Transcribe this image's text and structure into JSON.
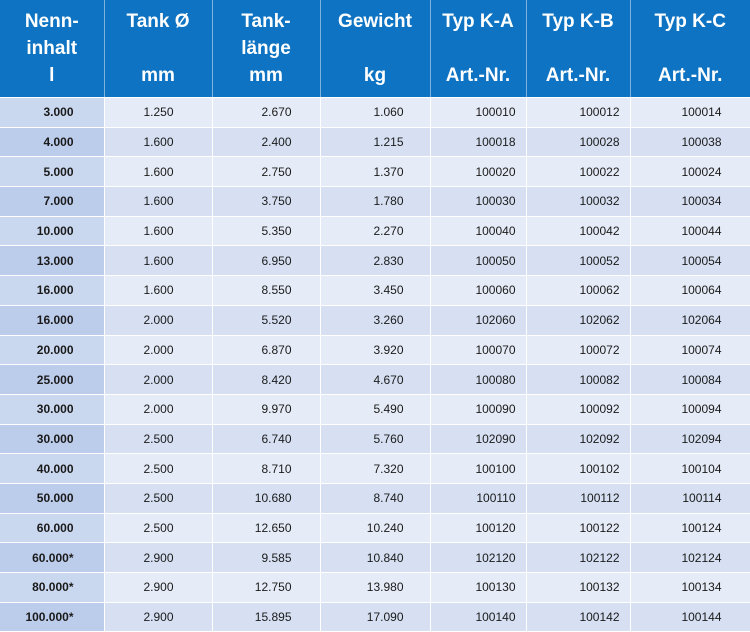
{
  "header": [
    [
      "Nenn-",
      "inhalt",
      "l"
    ],
    [
      "Tank Ø",
      "",
      "mm"
    ],
    [
      "Tank-",
      "länge",
      "mm"
    ],
    [
      "Gewicht",
      "",
      "kg"
    ],
    [
      "Typ K-A",
      "",
      "Art.-Nr."
    ],
    [
      "Typ K-B",
      "",
      "Art.-Nr."
    ],
    [
      "Typ K-C",
      "",
      "Art.-Nr."
    ]
  ],
  "rows": [
    [
      "3.000",
      "1.250",
      "2.670",
      "1.060",
      "100010",
      "100012",
      "100014"
    ],
    [
      "4.000",
      "1.600",
      "2.400",
      "1.215",
      "100018",
      "100028",
      "100038"
    ],
    [
      "5.000",
      "1.600",
      "2.750",
      "1.370",
      "100020",
      "100022",
      "100024"
    ],
    [
      "7.000",
      "1.600",
      "3.750",
      "1.780",
      "100030",
      "100032",
      "100034"
    ],
    [
      "10.000",
      "1.600",
      "5.350",
      "2.270",
      "100040",
      "100042",
      "100044"
    ],
    [
      "13.000",
      "1.600",
      "6.950",
      "2.830",
      "100050",
      "100052",
      "100054"
    ],
    [
      "16.000",
      "1.600",
      "8.550",
      "3.450",
      "100060",
      "100062",
      "100064"
    ],
    [
      "16.000",
      "2.000",
      "5.520",
      "3.260",
      "102060",
      "102062",
      "102064"
    ],
    [
      "20.000",
      "2.000",
      "6.870",
      "3.920",
      "100070",
      "100072",
      "100074"
    ],
    [
      "25.000",
      "2.000",
      "8.420",
      "4.670",
      "100080",
      "100082",
      "100084"
    ],
    [
      "30.000",
      "2.000",
      "9.970",
      "5.490",
      "100090",
      "100092",
      "100094"
    ],
    [
      "30.000",
      "2.500",
      "6.740",
      "5.760",
      "102090",
      "102092",
      "102094"
    ],
    [
      "40.000",
      "2.500",
      "8.710",
      "7.320",
      "100100",
      "100102",
      "100104"
    ],
    [
      "50.000",
      "2.500",
      "10.680",
      "8.740",
      "100110",
      "100112",
      "100114"
    ],
    [
      "60.000",
      "2.500",
      "12.650",
      "10.240",
      "100120",
      "100122",
      "100124"
    ],
    [
      "60.000*",
      "2.900",
      "9.585",
      "10.840",
      "102120",
      "102122",
      "102124"
    ],
    [
      "80.000*",
      "2.900",
      "12.750",
      "13.980",
      "100130",
      "100132",
      "100134"
    ],
    [
      "100.000*",
      "2.900",
      "15.895",
      "17.090",
      "100140",
      "100142",
      "100144"
    ]
  ],
  "colors": {
    "header_bg": "#0d73c2",
    "header_text": "#ffffff",
    "first_col_bg": "#c5d5ee",
    "row_light": "#e6ecf7",
    "row_dark": "#d6e0f2"
  }
}
